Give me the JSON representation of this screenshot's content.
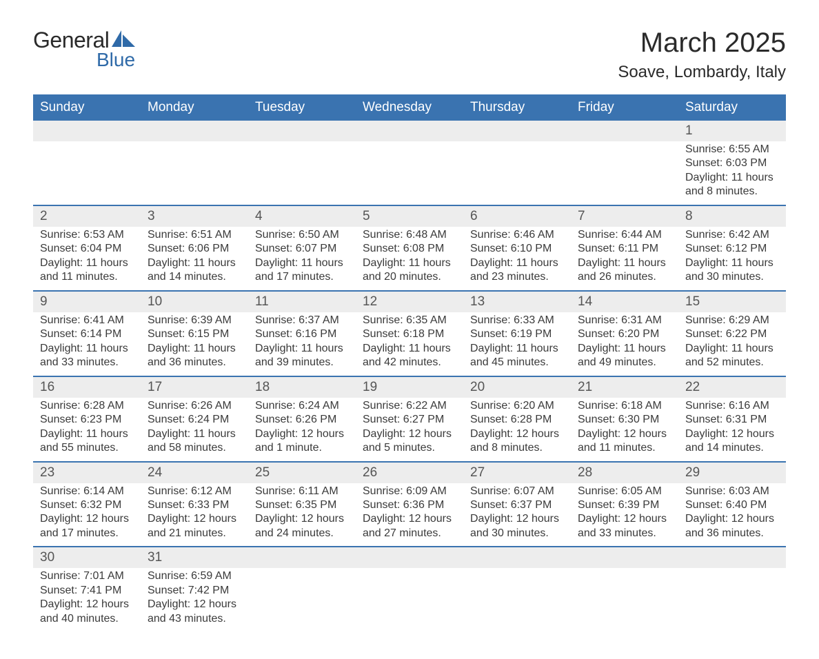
{
  "brand": {
    "name_part1": "General",
    "name_part2": "Blue",
    "sail_color": "#2f6aa8",
    "text_color_dark": "#2a2a2a"
  },
  "title": "March 2025",
  "location": "Soave, Lombardy, Italy",
  "colors": {
    "header_bg": "#3a73b0",
    "header_fg": "#ffffff",
    "daynum_bg": "#ededed",
    "row_separator": "#3a73b0",
    "body_text": "#3a3a3a",
    "page_bg": "#ffffff"
  },
  "day_headers": [
    "Sunday",
    "Monday",
    "Tuesday",
    "Wednesday",
    "Thursday",
    "Friday",
    "Saturday"
  ],
  "weeks": [
    [
      null,
      null,
      null,
      null,
      null,
      null,
      {
        "n": "1",
        "sunrise": "6:55 AM",
        "sunset": "6:03 PM",
        "daylight": "11 hours and 8 minutes."
      }
    ],
    [
      {
        "n": "2",
        "sunrise": "6:53 AM",
        "sunset": "6:04 PM",
        "daylight": "11 hours and 11 minutes."
      },
      {
        "n": "3",
        "sunrise": "6:51 AM",
        "sunset": "6:06 PM",
        "daylight": "11 hours and 14 minutes."
      },
      {
        "n": "4",
        "sunrise": "6:50 AM",
        "sunset": "6:07 PM",
        "daylight": "11 hours and 17 minutes."
      },
      {
        "n": "5",
        "sunrise": "6:48 AM",
        "sunset": "6:08 PM",
        "daylight": "11 hours and 20 minutes."
      },
      {
        "n": "6",
        "sunrise": "6:46 AM",
        "sunset": "6:10 PM",
        "daylight": "11 hours and 23 minutes."
      },
      {
        "n": "7",
        "sunrise": "6:44 AM",
        "sunset": "6:11 PM",
        "daylight": "11 hours and 26 minutes."
      },
      {
        "n": "8",
        "sunrise": "6:42 AM",
        "sunset": "6:12 PM",
        "daylight": "11 hours and 30 minutes."
      }
    ],
    [
      {
        "n": "9",
        "sunrise": "6:41 AM",
        "sunset": "6:14 PM",
        "daylight": "11 hours and 33 minutes."
      },
      {
        "n": "10",
        "sunrise": "6:39 AM",
        "sunset": "6:15 PM",
        "daylight": "11 hours and 36 minutes."
      },
      {
        "n": "11",
        "sunrise": "6:37 AM",
        "sunset": "6:16 PM",
        "daylight": "11 hours and 39 minutes."
      },
      {
        "n": "12",
        "sunrise": "6:35 AM",
        "sunset": "6:18 PM",
        "daylight": "11 hours and 42 minutes."
      },
      {
        "n": "13",
        "sunrise": "6:33 AM",
        "sunset": "6:19 PM",
        "daylight": "11 hours and 45 minutes."
      },
      {
        "n": "14",
        "sunrise": "6:31 AM",
        "sunset": "6:20 PM",
        "daylight": "11 hours and 49 minutes."
      },
      {
        "n": "15",
        "sunrise": "6:29 AM",
        "sunset": "6:22 PM",
        "daylight": "11 hours and 52 minutes."
      }
    ],
    [
      {
        "n": "16",
        "sunrise": "6:28 AM",
        "sunset": "6:23 PM",
        "daylight": "11 hours and 55 minutes."
      },
      {
        "n": "17",
        "sunrise": "6:26 AM",
        "sunset": "6:24 PM",
        "daylight": "11 hours and 58 minutes."
      },
      {
        "n": "18",
        "sunrise": "6:24 AM",
        "sunset": "6:26 PM",
        "daylight": "12 hours and 1 minute."
      },
      {
        "n": "19",
        "sunrise": "6:22 AM",
        "sunset": "6:27 PM",
        "daylight": "12 hours and 5 minutes."
      },
      {
        "n": "20",
        "sunrise": "6:20 AM",
        "sunset": "6:28 PM",
        "daylight": "12 hours and 8 minutes."
      },
      {
        "n": "21",
        "sunrise": "6:18 AM",
        "sunset": "6:30 PM",
        "daylight": "12 hours and 11 minutes."
      },
      {
        "n": "22",
        "sunrise": "6:16 AM",
        "sunset": "6:31 PM",
        "daylight": "12 hours and 14 minutes."
      }
    ],
    [
      {
        "n": "23",
        "sunrise": "6:14 AM",
        "sunset": "6:32 PM",
        "daylight": "12 hours and 17 minutes."
      },
      {
        "n": "24",
        "sunrise": "6:12 AM",
        "sunset": "6:33 PM",
        "daylight": "12 hours and 21 minutes."
      },
      {
        "n": "25",
        "sunrise": "6:11 AM",
        "sunset": "6:35 PM",
        "daylight": "12 hours and 24 minutes."
      },
      {
        "n": "26",
        "sunrise": "6:09 AM",
        "sunset": "6:36 PM",
        "daylight": "12 hours and 27 minutes."
      },
      {
        "n": "27",
        "sunrise": "6:07 AM",
        "sunset": "6:37 PM",
        "daylight": "12 hours and 30 minutes."
      },
      {
        "n": "28",
        "sunrise": "6:05 AM",
        "sunset": "6:39 PM",
        "daylight": "12 hours and 33 minutes."
      },
      {
        "n": "29",
        "sunrise": "6:03 AM",
        "sunset": "6:40 PM",
        "daylight": "12 hours and 36 minutes."
      }
    ],
    [
      {
        "n": "30",
        "sunrise": "7:01 AM",
        "sunset": "7:41 PM",
        "daylight": "12 hours and 40 minutes."
      },
      {
        "n": "31",
        "sunrise": "6:59 AM",
        "sunset": "7:42 PM",
        "daylight": "12 hours and 43 minutes."
      },
      null,
      null,
      null,
      null,
      null
    ]
  ],
  "labels": {
    "sunrise": "Sunrise:",
    "sunset": "Sunset:",
    "daylight": "Daylight:"
  }
}
